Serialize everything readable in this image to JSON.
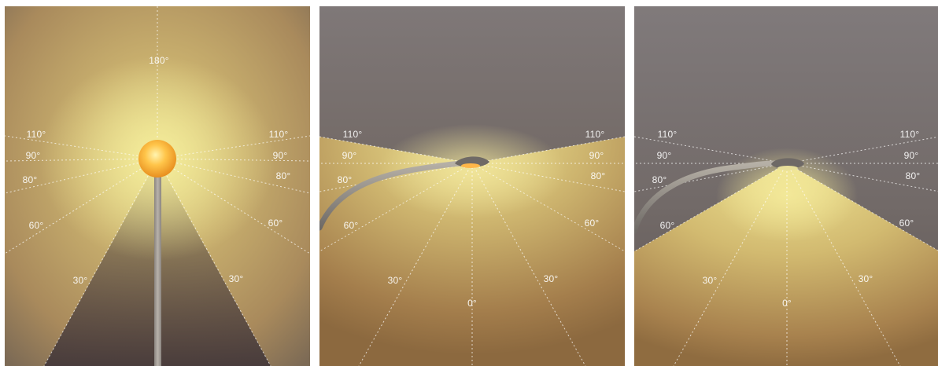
{
  "panels": [
    {
      "luminaire": "globe-post-top",
      "angle_labels": [
        "180°",
        "110°",
        "90°",
        "80°",
        "60°",
        "30°",
        "110°",
        "90°",
        "80°",
        "60°",
        "30°"
      ]
    },
    {
      "luminaire": "cobra-head-shallow-arm",
      "angle_labels": [
        "110°",
        "90°",
        "80°",
        "60°",
        "30°",
        "0°",
        "110°",
        "90°",
        "80°",
        "60°",
        "30°"
      ]
    },
    {
      "luminaire": "cobra-head-full-cutoff",
      "angle_labels": [
        "110°",
        "90°",
        "80°",
        "60°",
        "30°",
        "0°",
        "110°",
        "90°",
        "80°",
        "60°",
        "30°"
      ]
    }
  ],
  "colors": {
    "night_sky": "#7d7774",
    "glow_yellow": "#ecdf86",
    "ground_brown": "#8a6a3c",
    "dark_ground": "#4b4140",
    "pole": "#9a9490"
  }
}
